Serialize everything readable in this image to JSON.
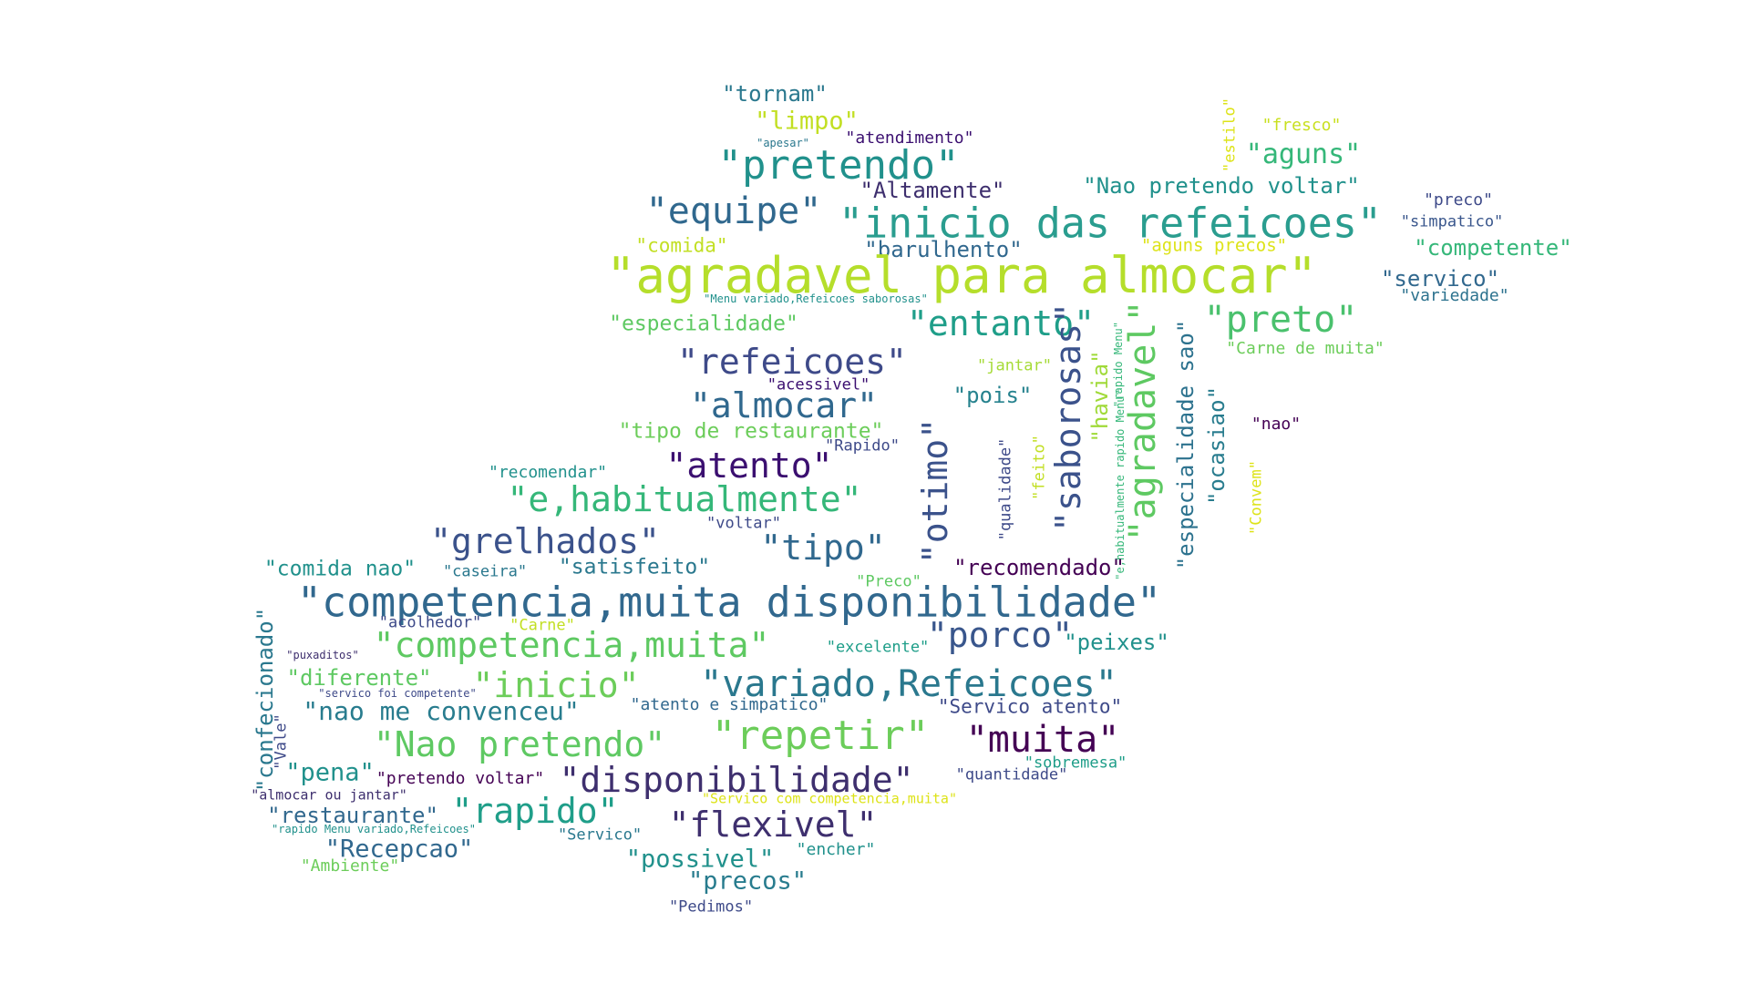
{
  "words": [
    {
      "text": "\"tornam\"",
      "color": "#2a788e"
    },
    {
      "text": "\"limpo\"",
      "color": "#c2df23"
    },
    {
      "text": "\"apesar\"",
      "color": "#2a788e"
    },
    {
      "text": "\"atendimento\"",
      "color": "#3b0f70"
    },
    {
      "text": "\"pretendo\"",
      "color": "#21918c"
    },
    {
      "text": "\"estilo\"",
      "color": "#dde318"
    },
    {
      "text": "\"fresco\"",
      "color": "#c9e020"
    },
    {
      "text": "\"aguns\"",
      "color": "#35b779"
    },
    {
      "text": "\"Altamente\"",
      "color": "#3e2f6e"
    },
    {
      "text": "\"Nao pretendo voltar\"",
      "color": "#21918c"
    },
    {
      "text": "\"preco\"",
      "color": "#3e4a89"
    },
    {
      "text": "\"equipe\"",
      "color": "#30688e"
    },
    {
      "text": "\"inicio das refeicoes\"",
      "color": "#2a9d8f"
    },
    {
      "text": "\"simpatico\"",
      "color": "#39568c"
    },
    {
      "text": "\"comida\"",
      "color": "#c2df23"
    },
    {
      "text": "\"barulhento\"",
      "color": "#31688e"
    },
    {
      "text": "\"aguns precos\"",
      "color": "#dde318"
    },
    {
      "text": "\"competente\"",
      "color": "#35b779"
    },
    {
      "text": "\"agradavel para almocar\"",
      "color": "#b5de2b"
    },
    {
      "text": "\"servico\"",
      "color": "#31688e"
    },
    {
      "text": "\"variedade\"",
      "color": "#2c728e"
    },
    {
      "text": "\"Menu variado,Refeicoes saborosas\"",
      "color": "#21918c"
    },
    {
      "text": "\"especialidade\"",
      "color": "#5ec962"
    },
    {
      "text": "\"entanto\"",
      "color": "#1f9e89"
    },
    {
      "text": "\"preto\"",
      "color": "#4ac16d"
    },
    {
      "text": "\"Carne de muita\"",
      "color": "#6ccd5a"
    },
    {
      "text": "\"saborosas\"",
      "color": "#3b528b"
    },
    {
      "text": "\"agradavel\"",
      "color": "#5ec962"
    },
    {
      "text": "\"especialidade sao\"",
      "color": "#2c728e"
    },
    {
      "text": "\"ocasiao\"",
      "color": "#287c8e"
    },
    {
      "text": "\"refeicoes\"",
      "color": "#3e4a89"
    },
    {
      "text": "\"jantar\"",
      "color": "#a5db36"
    },
    {
      "text": "\"havia\"",
      "color": "#a0da39"
    },
    {
      "text": "\"rapido Menu\"",
      "color": "#35b779"
    },
    {
      "text": "\"acessivel\"",
      "color": "#3b0f70"
    },
    {
      "text": "\"almocar\"",
      "color": "#30688e"
    },
    {
      "text": "\"pois\"",
      "color": "#26828e"
    },
    {
      "text": "\"nao\"",
      "color": "#440154"
    },
    {
      "text": "\"tipo de restaurante\"",
      "color": "#6ccd5a"
    },
    {
      "text": "\"otimo\"",
      "color": "#3b528b"
    },
    {
      "text": "\"Rapido\"",
      "color": "#3e4a89"
    },
    {
      "text": "\"Convem\"",
      "color": "#dde318"
    },
    {
      "text": "\"recomendar\"",
      "color": "#21918c"
    },
    {
      "text": "\"atento\"",
      "color": "#3b0f70"
    },
    {
      "text": "\"feito\"",
      "color": "#c2df23"
    },
    {
      "text": "\"qualidade\"",
      "color": "#3e4a89"
    },
    {
      "text": "\"e,habitualmente rapido Menu\"",
      "color": "#35b779"
    },
    {
      "text": "\"e,habitualmente\"",
      "color": "#35b779"
    },
    {
      "text": "\"voltar\"",
      "color": "#3e4a89"
    },
    {
      "text": "\"grelhados\"",
      "color": "#3b528b"
    },
    {
      "text": "\"tipo\"",
      "color": "#30688e"
    },
    {
      "text": "\"comida nao\"",
      "color": "#21918c"
    },
    {
      "text": "\"caseira\"",
      "color": "#2a788e"
    },
    {
      "text": "\"satisfeito\"",
      "color": "#2a788e"
    },
    {
      "text": "\"recomendado\"",
      "color": "#440154"
    },
    {
      "text": "\"Preco\"",
      "color": "#5ec962"
    },
    {
      "text": "\"competencia,muita disponibilidade\"",
      "color": "#31688e"
    },
    {
      "text": "\"confecionado\"",
      "color": "#2a788e"
    },
    {
      "text": "\"acolhedor\"",
      "color": "#3e4a89"
    },
    {
      "text": "\"Carne\"",
      "color": "#c2df23"
    },
    {
      "text": "\"porco\"",
      "color": "#39568c"
    },
    {
      "text": "\"competencia,muita\"",
      "color": "#5ec962"
    },
    {
      "text": "\"excelente\"",
      "color": "#1f9e89"
    },
    {
      "text": "\"peixes\"",
      "color": "#21918c"
    },
    {
      "text": "\"puxaditos\"",
      "color": "#3e2f6e"
    },
    {
      "text": "\"diferente\"",
      "color": "#5ec962"
    },
    {
      "text": "\"inicio\"",
      "color": "#6ccd5a"
    },
    {
      "text": "\"variado,Refeicoes\"",
      "color": "#2a788e"
    },
    {
      "text": "\"servico foi competente\"",
      "color": "#3e4a89"
    },
    {
      "text": "\"nao me convenceu\"",
      "color": "#287c8e"
    },
    {
      "text": "\"atento e simpatico\"",
      "color": "#31688e"
    },
    {
      "text": "\"Servico atento\"",
      "color": "#3e4a89"
    },
    {
      "text": "\"Vale\"",
      "color": "#3e4a89"
    },
    {
      "text": "\"Nao pretendo\"",
      "color": "#5ec962"
    },
    {
      "text": "\"repetir\"",
      "color": "#6ccd5a"
    },
    {
      "text": "\"muita\"",
      "color": "#440154"
    },
    {
      "text": "\"pena\"",
      "color": "#21918c"
    },
    {
      "text": "\"pretendo voltar\"",
      "color": "#440154"
    },
    {
      "text": "\"disponibilidade\"",
      "color": "#3e2f6e"
    },
    {
      "text": "\"quantidade\"",
      "color": "#3e4a89"
    },
    {
      "text": "\"sobremesa\"",
      "color": "#1f9e89"
    },
    {
      "text": "\"almocar ou jantar\"",
      "color": "#3e2f6e"
    },
    {
      "text": "\"Servico com competencia,muita\"",
      "color": "#dde318"
    },
    {
      "text": "\"restaurante\"",
      "color": "#31688e"
    },
    {
      "text": "\"rapido\"",
      "color": "#1f9e89"
    },
    {
      "text": "\"rapido Menu variado,Refeicoes\"",
      "color": "#21918c"
    },
    {
      "text": "\"flexivel\"",
      "color": "#3e2f6e"
    },
    {
      "text": "\"Servico\"",
      "color": "#2a788e"
    },
    {
      "text": "\"Recepcao\"",
      "color": "#31688e"
    },
    {
      "text": "\"encher\"",
      "color": "#21918c"
    },
    {
      "text": "\"possivel\"",
      "color": "#21918c"
    },
    {
      "text": "\"Ambiente\"",
      "color": "#6ccd5a"
    },
    {
      "text": "\"precos\"",
      "color": "#287c8e"
    },
    {
      "text": "\"Pedimos\"",
      "color": "#3e4a89"
    }
  ]
}
